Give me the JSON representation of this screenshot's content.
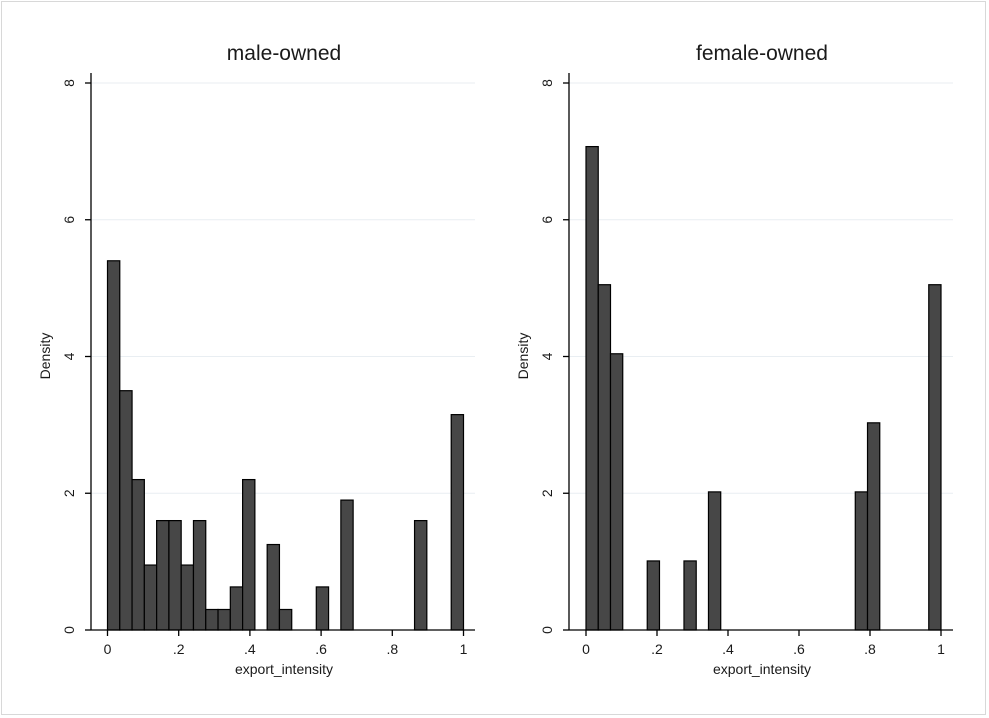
{
  "chart_data": [
    {
      "type": "bar",
      "title": "male-owned",
      "xlabel": "export_intensity",
      "ylabel": "Density",
      "xlim": [
        0,
        1
      ],
      "ylim": [
        0,
        8
      ],
      "xticks": [
        "0",
        ".2",
        ".4",
        ".6",
        ".8",
        "1"
      ],
      "yticks": [
        "0",
        "2",
        "4",
        "6",
        "8"
      ],
      "bin_width": 0.0345,
      "bins": [
        {
          "x0": 0.0,
          "value": 5.4
        },
        {
          "x0": 0.0345,
          "value": 3.5
        },
        {
          "x0": 0.069,
          "value": 2.2
        },
        {
          "x0": 0.1035,
          "value": 0.95
        },
        {
          "x0": 0.138,
          "value": 1.6
        },
        {
          "x0": 0.1725,
          "value": 1.6
        },
        {
          "x0": 0.207,
          "value": 0.95
        },
        {
          "x0": 0.2415,
          "value": 1.6
        },
        {
          "x0": 0.276,
          "value": 0.3
        },
        {
          "x0": 0.3105,
          "value": 0.3
        },
        {
          "x0": 0.345,
          "value": 0.63
        },
        {
          "x0": 0.3795,
          "value": 2.2
        },
        {
          "x0": 0.4485,
          "value": 1.25
        },
        {
          "x0": 0.483,
          "value": 0.3
        },
        {
          "x0": 0.5865,
          "value": 0.63
        },
        {
          "x0": 0.6555,
          "value": 1.9
        },
        {
          "x0": 0.8625,
          "value": 1.6
        },
        {
          "x0": 0.9655,
          "value": 3.15
        }
      ]
    },
    {
      "type": "bar",
      "title": "female-owned",
      "xlabel": "export_intensity",
      "ylabel": "Density",
      "xlim": [
        0,
        1
      ],
      "ylim": [
        0,
        8
      ],
      "xticks": [
        "0",
        ".2",
        ".4",
        ".6",
        ".8",
        "1"
      ],
      "yticks": [
        "0",
        "2",
        "4",
        "6",
        "8"
      ],
      "bin_width": 0.0345,
      "bins": [
        {
          "x0": 0.0,
          "value": 7.07
        },
        {
          "x0": 0.0345,
          "value": 5.05
        },
        {
          "x0": 0.069,
          "value": 4.04
        },
        {
          "x0": 0.1725,
          "value": 1.01
        },
        {
          "x0": 0.276,
          "value": 1.01
        },
        {
          "x0": 0.345,
          "value": 2.02
        },
        {
          "x0": 0.7585,
          "value": 2.02
        },
        {
          "x0": 0.793,
          "value": 3.03
        },
        {
          "x0": 0.9655,
          "value": 5.05
        }
      ]
    }
  ]
}
